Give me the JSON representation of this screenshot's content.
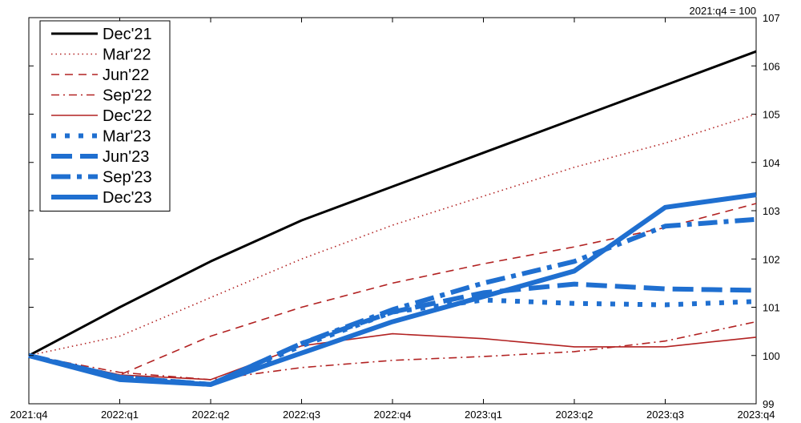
{
  "chart_data": {
    "type": "line",
    "title": "",
    "xlabel": "",
    "ylabel": "",
    "note": "2021:q4 = 100",
    "categories": [
      "2021:q4",
      "2022:q1",
      "2022:q2",
      "2022:q3",
      "2022:q4",
      "2023:q1",
      "2023:q2",
      "2023:q3",
      "2023:q4"
    ],
    "ylim": [
      99,
      107
    ],
    "yticks": [
      "99",
      "100",
      "101",
      "102",
      "103",
      "104",
      "105",
      "106",
      "107"
    ],
    "y_axis_side": "right",
    "legend_position": "top-left",
    "grid": false,
    "series": [
      {
        "name": "Dec'21",
        "color": "#000000",
        "style": "solid",
        "weight": "medium",
        "values": [
          100,
          101.0,
          101.95,
          102.8,
          103.5,
          104.2,
          104.9,
          105.6,
          106.3
        ]
      },
      {
        "name": "Mar'22",
        "color": "#b22222",
        "style": "dotted",
        "weight": "thin",
        "values": [
          100,
          100.4,
          101.2,
          102.0,
          102.7,
          103.3,
          103.9,
          104.4,
          105.0
        ]
      },
      {
        "name": "Jun'22",
        "color": "#b22222",
        "style": "dashed",
        "weight": "thin",
        "values": [
          100,
          99.6,
          100.4,
          101.0,
          101.5,
          101.9,
          102.25,
          102.65,
          103.15
        ]
      },
      {
        "name": "Sep'22",
        "color": "#b22222",
        "style": "dashdot",
        "weight": "thin",
        "values": [
          100,
          99.65,
          99.5,
          99.75,
          99.9,
          99.98,
          100.08,
          100.3,
          100.7
        ]
      },
      {
        "name": "Dec'22",
        "color": "#b22222",
        "style": "solid",
        "weight": "thin",
        "values": [
          100,
          99.6,
          99.5,
          100.2,
          100.45,
          100.35,
          100.18,
          100.18,
          100.38
        ]
      },
      {
        "name": "Mar'23",
        "color": "#1f6fd0",
        "style": "dotted",
        "weight": "thick",
        "values": [
          100,
          99.55,
          99.4,
          100.2,
          100.9,
          101.15,
          101.08,
          101.05,
          101.12
        ]
      },
      {
        "name": "Jun'23",
        "color": "#1f6fd0",
        "style": "dashed",
        "weight": "thick",
        "values": [
          100,
          99.55,
          99.4,
          100.25,
          100.9,
          101.3,
          101.48,
          101.38,
          101.35
        ]
      },
      {
        "name": "Sep'23",
        "color": "#1f6fd0",
        "style": "dashdot",
        "weight": "thick",
        "values": [
          100,
          99.55,
          99.4,
          100.25,
          100.95,
          101.5,
          101.95,
          102.68,
          102.82
        ]
      },
      {
        "name": "Dec'23",
        "color": "#1f6fd0",
        "style": "solid",
        "weight": "thick",
        "values": [
          100,
          99.5,
          99.4,
          100.05,
          100.7,
          101.22,
          101.75,
          103.07,
          103.33
        ]
      }
    ]
  }
}
